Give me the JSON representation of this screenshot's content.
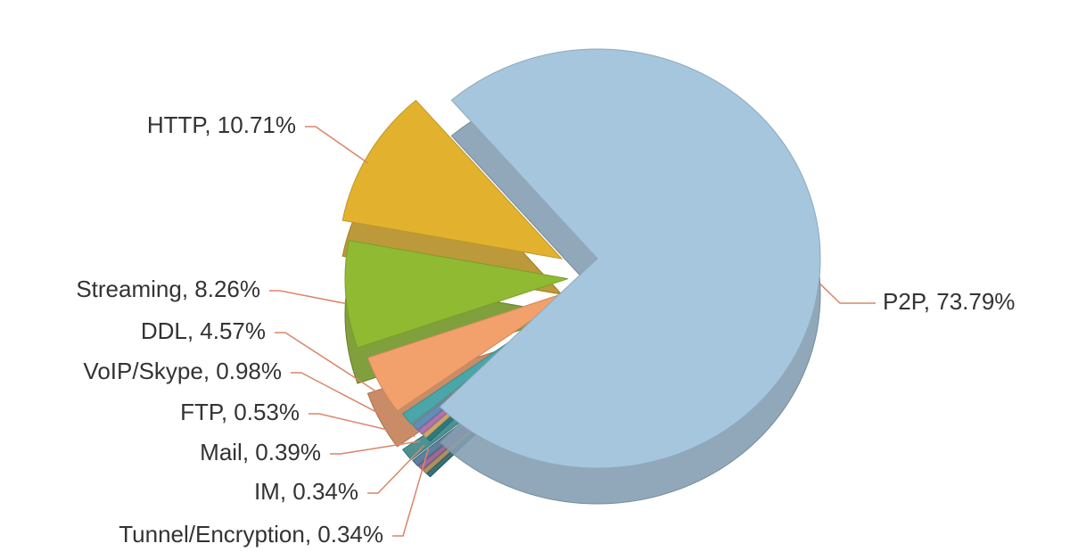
{
  "chart_data": {
    "type": "pie",
    "values": [
      73.79,
      10.71,
      8.26,
      4.57,
      0.98,
      0.53,
      0.39,
      0.34,
      0.34
    ],
    "value_labels": [
      "P2P, 73.79%",
      "HTTP, 10.71%",
      "Streaming, 8.26%",
      "DDL, 4.57%",
      "VoIP/Skype, 0.98%",
      "FTP, 0.53%",
      "Mail, 0.39%",
      "IM, 0.34%",
      "Tunnel/Encryption, 0.34%"
    ],
    "colors": [
      "#a6c6de",
      "#e2b22e",
      "#8fba32",
      "#f2a06c",
      "#4aa6a8",
      "#5f8fb5",
      "#b073b0",
      "#c9a768",
      "#2b7b82"
    ]
  }
}
